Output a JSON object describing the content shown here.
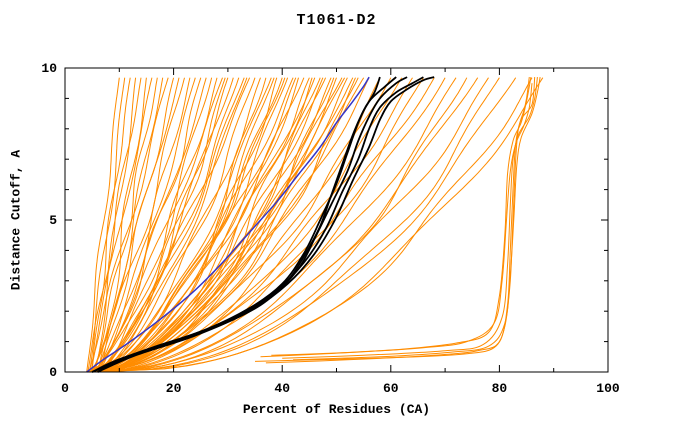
{
  "chart_data": {
    "type": "line",
    "title": "T1061-D2",
    "xlabel": "Percent of Residues (CA)",
    "ylabel": "Distance Cutoff, A",
    "xlim": [
      0,
      100
    ],
    "ylim": [
      0,
      10
    ],
    "xticks_major": [
      0,
      20,
      40,
      60,
      80,
      100
    ],
    "xticks_minor_step": 10,
    "yticks_major": [
      0,
      5,
      10
    ],
    "yticks_minor_step": 1,
    "legend": "none",
    "grid": false,
    "colors": {
      "models": "#ff8c00",
      "highlight": "#000000",
      "reference": "#3535c8"
    },
    "orange_param_curves": [
      [
        4.0,
        10,
        1.0,
        0.4,
        1.2,
        0.5
      ],
      [
        4.5,
        11,
        0.95,
        0.5,
        1.0,
        2.0
      ],
      [
        5.0,
        12,
        1.1,
        0.4,
        1.4,
        4.0
      ],
      [
        5.5,
        13,
        0.9,
        0.6,
        0.9,
        1.0
      ],
      [
        4.2,
        14,
        1.0,
        0.5,
        1.3,
        3.0
      ],
      [
        6.0,
        15,
        0.85,
        0.7,
        1.1,
        5.0
      ],
      [
        4.8,
        16,
        1.05,
        0.5,
        0.8,
        2.5
      ],
      [
        5.2,
        17,
        0.9,
        0.6,
        1.5,
        0.8
      ],
      [
        6.5,
        18,
        0.95,
        0.5,
        1.2,
        3.5
      ],
      [
        4.4,
        19,
        1.0,
        0.7,
        1.0,
        1.8
      ],
      [
        5.8,
        20,
        0.85,
        0.6,
        1.3,
        4.5
      ],
      [
        5.0,
        21,
        0.9,
        0.5,
        0.9,
        0.2
      ],
      [
        4.6,
        22,
        0.8,
        0.8,
        1.1,
        2.2
      ],
      [
        5.4,
        23,
        0.75,
        0.7,
        1.2,
        3.8
      ],
      [
        6.2,
        24,
        0.85,
        0.6,
        1.0,
        1.4
      ],
      [
        4.9,
        25,
        0.7,
        0.9,
        1.3,
        5.2
      ],
      [
        5.6,
        26,
        0.8,
        0.7,
        0.9,
        0.6
      ],
      [
        6.8,
        27,
        0.75,
        0.8,
        1.1,
        2.9
      ],
      [
        4.3,
        28,
        0.65,
        0.9,
        1.2,
        4.2
      ],
      [
        5.1,
        29,
        0.8,
        0.7,
        1.0,
        1.1
      ],
      [
        5.9,
        30,
        0.7,
        0.8,
        1.4,
        3.3
      ],
      [
        6.4,
        31,
        0.75,
        0.9,
        0.8,
        5.5
      ],
      [
        4.7,
        32,
        0.65,
        0.8,
        1.2,
        0.9
      ],
      [
        5.3,
        33,
        0.7,
        0.9,
        1.0,
        2.6
      ],
      [
        6.0,
        34,
        0.8,
        0.7,
        1.3,
        4.8
      ],
      [
        4.5,
        35,
        0.6,
        1.0,
        1.1,
        1.6
      ],
      [
        7.0,
        33.5,
        0.72,
        0.8,
        0.95,
        3.1
      ],
      [
        6.6,
        29.5,
        0.68,
        0.9,
        1.25,
        5.8
      ],
      [
        4.8,
        36,
        0.6,
        1.0,
        1.0,
        0.4
      ],
      [
        5.5,
        37,
        0.55,
        1.1,
        1.2,
        2.0
      ],
      [
        6.1,
        38,
        0.65,
        0.9,
        0.9,
        3.6
      ],
      [
        4.4,
        39,
        0.5,
        1.2,
        1.1,
        5.0
      ],
      [
        5.0,
        40,
        0.6,
        1.0,
        1.3,
        1.2
      ],
      [
        5.7,
        41,
        0.55,
        1.1,
        1.0,
        2.8
      ],
      [
        6.3,
        42,
        0.65,
        0.9,
        1.2,
        4.4
      ],
      [
        4.6,
        43,
        0.5,
        1.2,
        0.8,
        0.7
      ],
      [
        5.2,
        44,
        0.6,
        1.0,
        1.1,
        2.3
      ],
      [
        5.8,
        45,
        0.55,
        1.1,
        1.3,
        3.9
      ],
      [
        6.5,
        46,
        0.62,
        1.0,
        0.9,
        5.5
      ],
      [
        4.9,
        47,
        0.52,
        1.2,
        1.2,
        1.0
      ],
      [
        5.4,
        48,
        0.58,
        1.0,
        1.0,
        2.7
      ],
      [
        6.0,
        49,
        0.55,
        1.1,
        1.2,
        4.3
      ],
      [
        4.7,
        50,
        0.5,
        1.2,
        0.9,
        0.3
      ],
      [
        5.3,
        51,
        0.6,
        1.0,
        1.1,
        1.9
      ],
      [
        5.9,
        52,
        0.55,
        1.1,
        1.3,
        3.5
      ],
      [
        6.6,
        53,
        0.62,
        0.9,
        1.0,
        5.1
      ],
      [
        5.0,
        54,
        0.52,
        1.2,
        1.2,
        0.8
      ],
      [
        5.6,
        55,
        0.58,
        1.0,
        0.9,
        2.4
      ],
      [
        4.5,
        45.5,
        0.48,
        1.3,
        1.15,
        4.0
      ],
      [
        5.1,
        47.5,
        0.55,
        1.1,
        1.05,
        5.6
      ],
      [
        5.7,
        49.5,
        0.5,
        1.2,
        1.25,
        1.3
      ],
      [
        6.2,
        51.5,
        0.6,
        1.0,
        0.85,
        2.9
      ],
      [
        4.8,
        53.5,
        0.52,
        1.2,
        1.15,
        4.5
      ],
      [
        5.4,
        42.5,
        0.58,
        1.1,
        1.0,
        0.1
      ],
      [
        6.0,
        40.5,
        0.62,
        1.0,
        1.2,
        1.7
      ],
      [
        4.6,
        38.5,
        0.55,
        1.1,
        0.95,
        3.3
      ],
      [
        5.2,
        56,
        0.55,
        1.1,
        1.1,
        4.9
      ],
      [
        5.8,
        58,
        0.5,
        1.2,
        1.0,
        0.5
      ],
      [
        6.4,
        60,
        0.58,
        1.0,
        1.2,
        2.1
      ],
      [
        4.9,
        62,
        0.52,
        1.2,
        0.9,
        3.7
      ],
      [
        5.5,
        64,
        0.55,
        1.1,
        1.15,
        5.3
      ],
      [
        6.1,
        66,
        0.5,
        1.2,
        1.05,
        1.4
      ],
      [
        5.0,
        68,
        0.55,
        1.1,
        1.2,
        3.0
      ],
      [
        5.6,
        70,
        0.52,
        1.2,
        0.95,
        4.6
      ],
      [
        5.3,
        72,
        0.48,
        1.2,
        1.0,
        0.9
      ],
      [
        5.9,
        74,
        0.45,
        1.3,
        1.1,
        2.5
      ],
      [
        6.5,
        76,
        0.5,
        1.1,
        0.9,
        4.1
      ],
      [
        5.1,
        78,
        0.45,
        1.2,
        1.15,
        5.7
      ],
      [
        5.7,
        80,
        0.42,
        1.3,
        1.05,
        1.6
      ],
      [
        6.2,
        83,
        0.45,
        1.2,
        0.95,
        3.2
      ],
      [
        5.4,
        86,
        0.4,
        1.3,
        1.1,
        4.8
      ],
      [
        6.0,
        88,
        0.42,
        1.2,
        1.0,
        0.2
      ]
    ],
    "orange_point_curves": [
      [
        [
          35,
          0.35
        ],
        [
          50,
          0.42
        ],
        [
          65,
          0.5
        ],
        [
          74,
          0.6
        ],
        [
          79,
          0.8
        ],
        [
          81,
          1.5
        ],
        [
          82,
          3
        ],
        [
          82.5,
          5
        ],
        [
          83,
          7
        ],
        [
          83.5,
          8
        ],
        [
          84.5,
          8.6
        ],
        [
          85,
          9
        ],
        [
          85.5,
          9.7
        ]
      ],
      [
        [
          37,
          0.3
        ],
        [
          52,
          0.4
        ],
        [
          68,
          0.55
        ],
        [
          76,
          0.7
        ],
        [
          80,
          1.0
        ],
        [
          81.5,
          2.2
        ],
        [
          82,
          4
        ],
        [
          82.5,
          6
        ],
        [
          83,
          7.5
        ],
        [
          84,
          8.3
        ],
        [
          86,
          8.8
        ],
        [
          86.5,
          9.7
        ]
      ],
      [
        [
          40,
          0.45
        ],
        [
          55,
          0.55
        ],
        [
          70,
          0.7
        ],
        [
          77,
          0.9
        ],
        [
          80.5,
          1.8
        ],
        [
          81.5,
          3.5
        ],
        [
          82,
          5.5
        ],
        [
          82.5,
          7
        ],
        [
          83.5,
          7.8
        ],
        [
          85.5,
          8.4
        ],
        [
          86.5,
          9
        ],
        [
          87,
          9.7
        ]
      ],
      [
        [
          36,
          0.5
        ],
        [
          48,
          0.6
        ],
        [
          62,
          0.75
        ],
        [
          72,
          0.95
        ],
        [
          78,
          1.3
        ],
        [
          80,
          2.5
        ],
        [
          81,
          4.5
        ],
        [
          81.5,
          6.5
        ],
        [
          82.5,
          7.6
        ],
        [
          84,
          8.2
        ],
        [
          85,
          8.9
        ],
        [
          85.8,
          9.7
        ]
      ],
      [
        [
          42,
          0.4
        ],
        [
          58,
          0.5
        ],
        [
          71,
          0.65
        ],
        [
          78,
          0.85
        ],
        [
          81,
          1.6
        ],
        [
          82,
          3.2
        ],
        [
          82.7,
          5.2
        ],
        [
          83.2,
          6.8
        ],
        [
          84,
          7.7
        ],
        [
          86,
          8.5
        ],
        [
          87,
          9.2
        ],
        [
          87.5,
          9.7
        ]
      ],
      [
        [
          38,
          0.55
        ],
        [
          53,
          0.65
        ],
        [
          66,
          0.8
        ],
        [
          74,
          1.0
        ],
        [
          79,
          1.6
        ],
        [
          80.5,
          3
        ],
        [
          81.3,
          5
        ],
        [
          82,
          6.6
        ],
        [
          83,
          7.5
        ],
        [
          84.5,
          8.1
        ],
        [
          85.5,
          8.7
        ],
        [
          86,
          9.5
        ]
      ]
    ],
    "black_curves": [
      [
        [
          5,
          0
        ],
        [
          10,
          0.4
        ],
        [
          18,
          0.9
        ],
        [
          28,
          1.5
        ],
        [
          36,
          2.2
        ],
        [
          41,
          3.0
        ],
        [
          44,
          3.8
        ],
        [
          47,
          4.8
        ],
        [
          49,
          5.8
        ],
        [
          51,
          6.8
        ],
        [
          53,
          7.8
        ],
        [
          55,
          8.6
        ],
        [
          57,
          9.2
        ],
        [
          58,
          9.7
        ]
      ],
      [
        [
          5,
          0
        ],
        [
          9,
          0.35
        ],
        [
          16,
          0.8
        ],
        [
          26,
          1.4
        ],
        [
          34,
          2.1
        ],
        [
          40,
          2.9
        ],
        [
          44,
          3.9
        ],
        [
          47,
          5.0
        ],
        [
          50,
          6.2
        ],
        [
          52,
          7.2
        ],
        [
          54,
          8.2
        ],
        [
          56,
          8.9
        ],
        [
          59,
          9.4
        ],
        [
          61,
          9.7
        ]
      ],
      [
        [
          6,
          0
        ],
        [
          11,
          0.45
        ],
        [
          20,
          1.0
        ],
        [
          30,
          1.7
        ],
        [
          38,
          2.5
        ],
        [
          43,
          3.4
        ],
        [
          46,
          4.4
        ],
        [
          49,
          5.5
        ],
        [
          52,
          6.6
        ],
        [
          54,
          7.6
        ],
        [
          56,
          8.4
        ],
        [
          58,
          9.0
        ],
        [
          61,
          9.5
        ],
        [
          63,
          9.7
        ]
      ],
      [
        [
          5,
          0
        ],
        [
          12,
          0.5
        ],
        [
          22,
          1.1
        ],
        [
          32,
          1.9
        ],
        [
          39,
          2.7
        ],
        [
          44,
          3.6
        ],
        [
          48,
          4.7
        ],
        [
          51,
          5.9
        ],
        [
          54,
          7.0
        ],
        [
          56,
          8.0
        ],
        [
          58,
          8.7
        ],
        [
          61,
          9.2
        ],
        [
          64,
          9.5
        ],
        [
          66,
          9.7
        ]
      ],
      [
        [
          6,
          0
        ],
        [
          13,
          0.55
        ],
        [
          24,
          1.2
        ],
        [
          34,
          2.0
        ],
        [
          41,
          2.9
        ],
        [
          46,
          3.9
        ],
        [
          50,
          5.1
        ],
        [
          53,
          6.3
        ],
        [
          56,
          7.4
        ],
        [
          58,
          8.3
        ],
        [
          60,
          8.9
        ],
        [
          63,
          9.3
        ],
        [
          66,
          9.6
        ],
        [
          68,
          9.7
        ]
      ]
    ],
    "blue_curve": [
      [
        4,
        0
      ],
      [
        7,
        0.4
      ],
      [
        12,
        1.0
      ],
      [
        18,
        1.8
      ],
      [
        24,
        2.7
      ],
      [
        29,
        3.6
      ],
      [
        34,
        4.6
      ],
      [
        39,
        5.6
      ],
      [
        43,
        6.5
      ],
      [
        47,
        7.4
      ],
      [
        50,
        8.2
      ],
      [
        53,
        8.9
      ],
      [
        55,
        9.4
      ],
      [
        56,
        9.7
      ]
    ]
  }
}
